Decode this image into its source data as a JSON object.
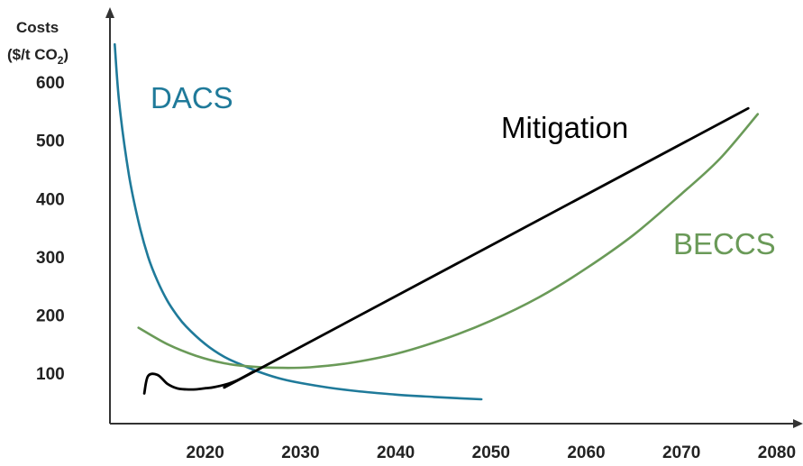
{
  "chart_data": {
    "type": "line",
    "title": "",
    "xlabel": "",
    "ylabel_line1": "Costs",
    "ylabel_line2_prefix": "($/t CO",
    "ylabel_line2_sub": "2",
    "ylabel_line2_suffix": ")",
    "xlim": [
      2010,
      2080
    ],
    "ylim": [
      0,
      650
    ],
    "x_ticks": [
      2020,
      2030,
      2040,
      2050,
      2060,
      2070,
      2080
    ],
    "y_ticks": [
      100,
      200,
      300,
      400,
      500,
      600
    ],
    "grid": false,
    "legend": "none (series labelled directly on chart)",
    "series": [
      {
        "name": "DACS",
        "color": "#1f7a9a",
        "x": [
          2010.5,
          2011,
          2012,
          2013,
          2014,
          2015,
          2016,
          2017,
          2018,
          2020,
          2022,
          2024,
          2026,
          2028,
          2030,
          2033,
          2036,
          2040,
          2044,
          2049
        ],
        "y": [
          665,
          560,
          440,
          360,
          300,
          258,
          225,
          200,
          180,
          150,
          128,
          113,
          100,
          90,
          83,
          75,
          69,
          63,
          59,
          55
        ]
      },
      {
        "name": "BECCS",
        "color": "#6a9a58",
        "x": [
          2013,
          2016,
          2019,
          2022,
          2025,
          2028,
          2031,
          2035,
          2040,
          2045,
          2050,
          2055,
          2060,
          2065,
          2070,
          2074,
          2078
        ],
        "y": [
          178,
          150,
          130,
          117,
          111,
          109,
          110,
          117,
          133,
          158,
          190,
          230,
          280,
          338,
          408,
          468,
          545
        ]
      },
      {
        "name": "Mitigation",
        "color": "#000000",
        "x": [
          2013.6,
          2014,
          2015,
          2016,
          2017,
          2018,
          2019,
          2020,
          2021,
          2023,
          2025,
          2026,
          2077
        ],
        "y": [
          65,
          95,
          97,
          82,
          74,
          72,
          72,
          74,
          76,
          85,
          102,
          110,
          555
        ]
      }
    ],
    "annotations": [
      {
        "text": "DACS",
        "series": "DACS"
      },
      {
        "text": "Mitigation",
        "series": "Mitigation"
      },
      {
        "text": "BECCS",
        "series": "BECCS"
      }
    ]
  }
}
